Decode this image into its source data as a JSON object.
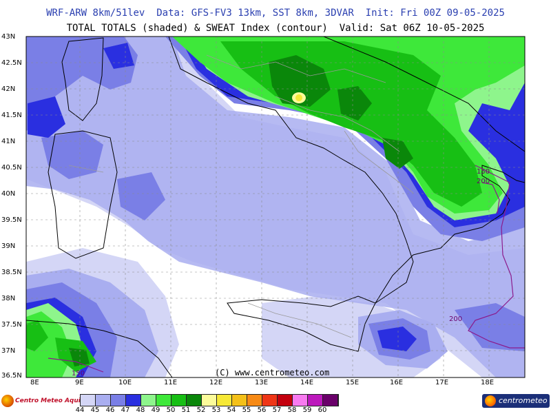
{
  "header": {
    "line1": "WRF-ARW 8km/51lev  Data: GFS-FV3 13km, SST 8km, 3DVAR  Init: Fri 00Z 09-05-2025",
    "line2": "TOTAL TOTALS (shaded) & SWEAT Index (contour)  Valid: Sat 06Z 10-05-2025"
  },
  "axes": {
    "lat_labels": [
      "43N",
      "42.5N",
      "42N",
      "41.5N",
      "41N",
      "40.5N",
      "40N",
      "39.5N",
      "39N",
      "38.5N",
      "38N",
      "37.5N",
      "37N",
      "36.5N"
    ],
    "lon_labels": [
      "8E",
      "9E",
      "10E",
      "11E",
      "12E",
      "13E",
      "14E",
      "15E",
      "16E",
      "17E",
      "18E"
    ]
  },
  "legend": {
    "levels": [
      "44",
      "45",
      "46",
      "47",
      "48",
      "49",
      "50",
      "51",
      "52",
      "53",
      "54",
      "55",
      "56",
      "57",
      "58",
      "59",
      "60"
    ],
    "colors": [
      "#d4d6f6",
      "#a9aef0",
      "#7a7fe6",
      "#2a2fe0",
      "#8ef58c",
      "#3ee83a",
      "#17bf14",
      "#0a870a",
      "#fbfb9a",
      "#f6e836",
      "#f4c018",
      "#f78a15",
      "#ef3616",
      "#c3000e",
      "#f87af0",
      "#bc18bc",
      "#6a006a"
    ]
  },
  "map": {
    "copyright": "(C) www.centrometeo.com",
    "sweat_labels": [
      "150",
      "200",
      "150",
      "200"
    ],
    "colors": {
      "sea": "#ffffff",
      "coast": "#000000",
      "border": "#9a9a9a",
      "grid": "#8a8a8a",
      "sweat_contour": "#8b1a8b"
    }
  },
  "branding": {
    "left": "Centro Meteo Aquilano",
    "right": "centrometeo"
  }
}
